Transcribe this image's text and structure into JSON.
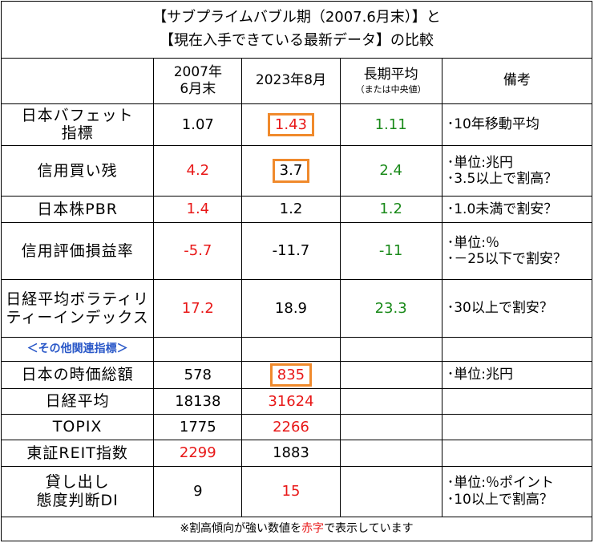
{
  "title": {
    "line1": "【サブプライムバブル期（2007.6月末）】と",
    "line2": "【現在入手できている最新データ】の比較"
  },
  "header": {
    "col_2007_line1": "2007年",
    "col_2007_line2": "6月末",
    "col_2023": "2023年8月",
    "col_longterm": "長期平均",
    "col_longterm_sub": "（または中央値）",
    "col_notes": "備考"
  },
  "rows": [
    {
      "label": [
        "日本バフェット",
        "指標"
      ],
      "v2007": "1.07",
      "v2023": "1.43",
      "longterm": "1.11",
      "notes": [
        "･10年移動平均"
      ]
    },
    {
      "label": [
        "信用買い残"
      ],
      "v2007": "4.2",
      "v2023": "3.7",
      "longterm": "2.4",
      "notes": [
        "･単位:兆円",
        "･3.5以上で割高？"
      ]
    },
    {
      "label": [
        "日本株PBR"
      ],
      "v2007": "1.4",
      "v2023": "1.2",
      "longterm": "1.2",
      "notes": [
        "･1.0未満で割安？"
      ]
    },
    {
      "label": [
        "信用評価損益率"
      ],
      "v2007": "-5.7",
      "v2023": "-11.7",
      "longterm": "-11",
      "notes": [
        "･単位:％",
        "･－25以下で割安？"
      ]
    },
    {
      "label": [
        "日経平均ボラティリ",
        "ティーインデックス"
      ],
      "v2007": "17.2",
      "v2023": "18.9",
      "longterm": "23.3",
      "notes": [
        "･30以上で割安？"
      ]
    }
  ],
  "section_label": "＜その他関連指標＞",
  "other_rows": [
    {
      "label": [
        "日本の時価総額"
      ],
      "v2007": "578",
      "v2023": "835",
      "notes": [
        "･単位:兆円"
      ]
    },
    {
      "label": [
        "日経平均"
      ],
      "v2007": "18138",
      "v2023": "31624",
      "notes": []
    },
    {
      "label": [
        "TOPIX"
      ],
      "v2007": "1775",
      "v2023": "2266",
      "notes": []
    },
    {
      "label": [
        "東証REIT指数"
      ],
      "v2007": "2299",
      "v2023": "1883",
      "notes": []
    },
    {
      "label": [
        "貸し出し",
        "態度判断DI"
      ],
      "v2007": "9",
      "v2023": "15",
      "notes": [
        "･単位:％ポイント",
        "･10以上で割高？"
      ]
    }
  ],
  "footnote": {
    "before": "※割高傾向が強い数値を",
    "highlight": "赤字",
    "after": "で表示しています"
  },
  "colors": {
    "red": "#e81818",
    "green": "#1a8a1a",
    "highlight_box": "#f08a2c",
    "section_blue": "#2a58c8"
  }
}
